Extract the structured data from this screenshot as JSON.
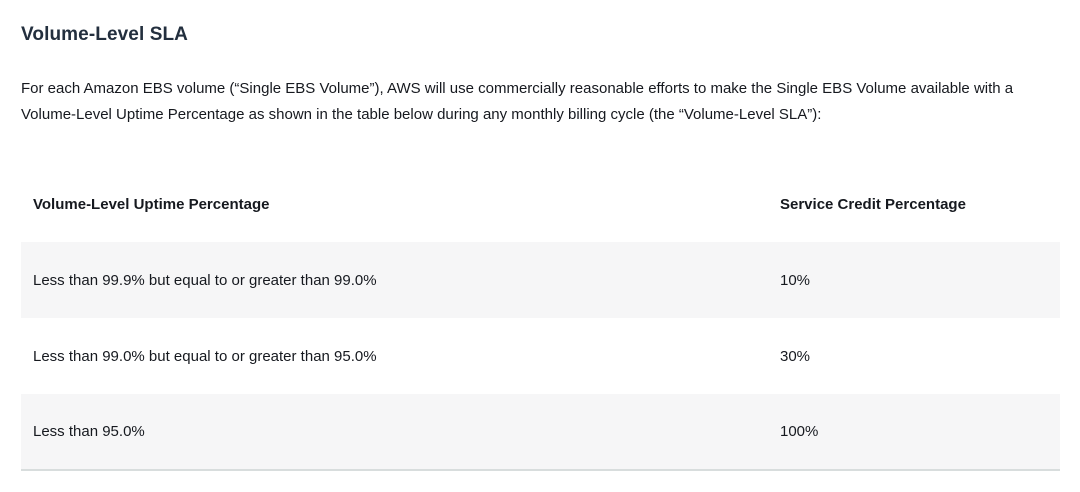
{
  "page": {
    "title": "Volume-Level SLA",
    "intro": "For each Amazon EBS volume (“Single EBS Volume”), AWS will use commercially reasonable efforts to make the Single EBS Volume available with a Volume-Level Uptime Percentage as shown in the table below during any monthly billing cycle (the “Volume-Level SLA”):"
  },
  "table": {
    "columns": [
      "Volume-Level Uptime Percentage",
      "Service Credit Percentage"
    ],
    "rows": [
      {
        "uptime": "Less than 99.9% but equal to or greater than 99.0%",
        "credit": "10%"
      },
      {
        "uptime": "Less than 99.0% but equal to or greater than 95.0%",
        "credit": "30%"
      },
      {
        "uptime": "Less than 95.0%",
        "credit": "100%"
      }
    ]
  },
  "colors": {
    "heading": "#232f3e",
    "body_text": "#16191f",
    "row_stripe": "#f6f6f7",
    "table_bottom_border": "#d8dddd",
    "background": "#ffffff"
  }
}
